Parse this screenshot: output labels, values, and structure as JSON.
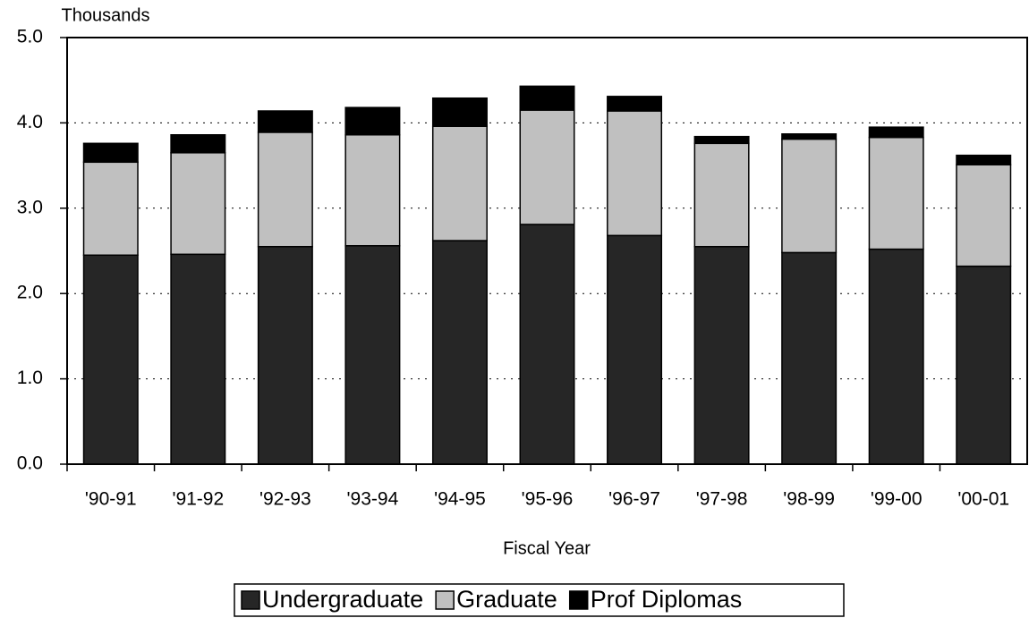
{
  "chart_data": {
    "type": "bar",
    "stacked": true,
    "y_unit_label": "Thousands",
    "x_label": "Fiscal Year",
    "categories": [
      "'90-91",
      "'91-92",
      "'92-93",
      "'93-94",
      "'94-95",
      "'95-96",
      "'96-97",
      "'97-98",
      "'98-99",
      "'99-00",
      "'00-01"
    ],
    "series": [
      {
        "name": "Undergraduate",
        "color": "#262626",
        "values": [
          2.45,
          2.46,
          2.55,
          2.56,
          2.62,
          2.81,
          2.68,
          2.55,
          2.48,
          2.52,
          2.32
        ]
      },
      {
        "name": "Graduate",
        "color": "#c0c0c0",
        "values": [
          1.09,
          1.19,
          1.34,
          1.3,
          1.34,
          1.34,
          1.46,
          1.21,
          1.33,
          1.31,
          1.19
        ]
      },
      {
        "name": "Prof Diplomas",
        "color": "#000000",
        "values": [
          0.22,
          0.21,
          0.25,
          0.32,
          0.33,
          0.28,
          0.17,
          0.08,
          0.06,
          0.12,
          0.11
        ]
      }
    ],
    "ylim": [
      0,
      5
    ],
    "yticks": [
      {
        "value": 0,
        "label": "0.0"
      },
      {
        "value": 1,
        "label": "1.0"
      },
      {
        "value": 2,
        "label": "2.0"
      },
      {
        "value": 3,
        "label": "3.0"
      },
      {
        "value": 4,
        "label": "4.0"
      },
      {
        "value": 5,
        "label": "5.0"
      }
    ],
    "grid": true,
    "legend": "bottom"
  }
}
